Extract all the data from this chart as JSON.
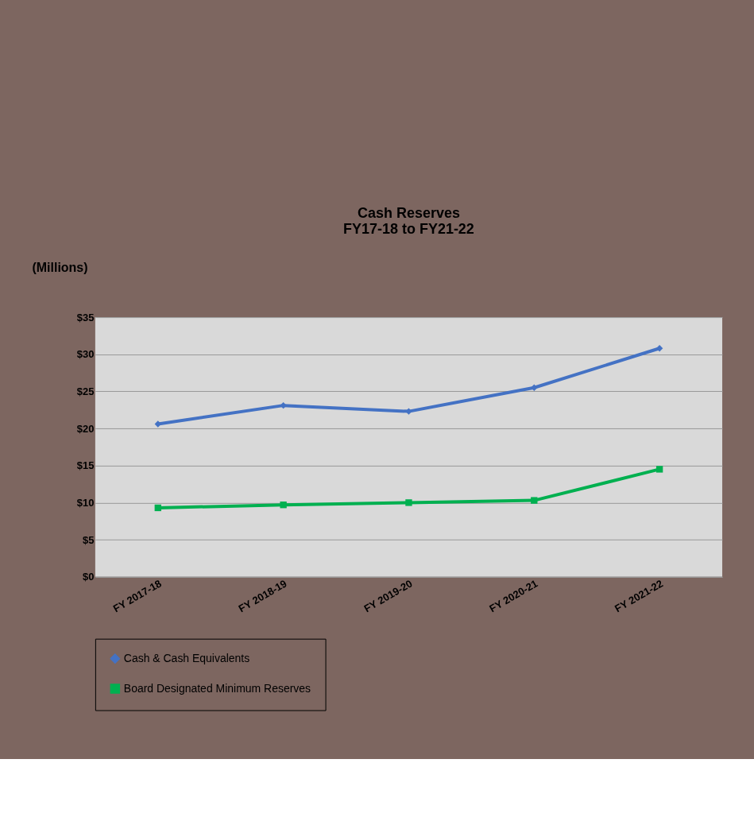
{
  "chart_data": {
    "type": "line",
    "title": "Cash Reserves",
    "subtitle": "FY17-18 to FY21-22",
    "ylabel": "(Millions)",
    "categories": [
      "FY 2017-18",
      "FY 2018-19",
      "FY 2019-20",
      "FY 2020-21",
      "FY 2021-22"
    ],
    "series": [
      {
        "name": "Cash & Cash Equivalents",
        "color": "#4472c4",
        "marker": "diamond",
        "values": [
          20.6,
          23.1,
          22.3,
          25.5,
          30.8
        ]
      },
      {
        "name": "Board Designated Minimum Reserves",
        "color": "#00b050",
        "marker": "square",
        "values": [
          9.3,
          9.7,
          10.0,
          10.3,
          14.5
        ]
      }
    ],
    "ylim": [
      0,
      35
    ],
    "yticks": [
      {
        "value": 0,
        "label": "$0"
      },
      {
        "value": 5,
        "label": "$5"
      },
      {
        "value": 10,
        "label": "$10"
      },
      {
        "value": 15,
        "label": "$15"
      },
      {
        "value": 20,
        "label": "$20"
      },
      {
        "value": 25,
        "label": "$25"
      },
      {
        "value": 30,
        "label": "$30"
      },
      {
        "value": 35,
        "label": "$35"
      }
    ],
    "grid": "y",
    "legend": "bottom"
  }
}
